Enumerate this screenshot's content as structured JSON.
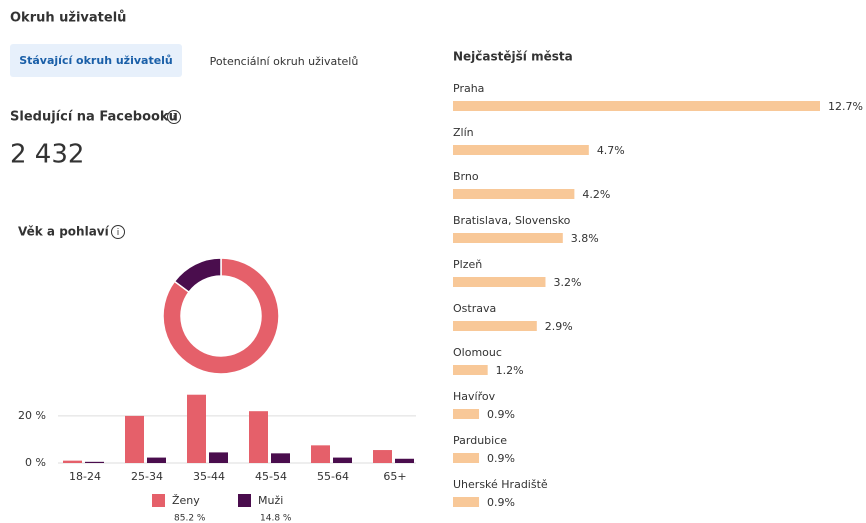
{
  "header": {
    "title": "Okruh uživatelů"
  },
  "tabs": [
    "Stávající okruh uživatelů",
    "Potenciální okruh uživatelů"
  ],
  "followers": {
    "label": "Sledující na Facebooku",
    "value": "2 432"
  },
  "age_gender_title": "Věk a pohlaví",
  "chart_data": [
    {
      "type": "pie",
      "values": [
        85.2,
        14.8
      ],
      "value_labels": [
        "85.2 %",
        "14.8 %"
      ],
      "colors": [
        "#e5606a",
        "#4a0d4d"
      ]
    },
    {
      "type": "bar",
      "categories": [
        "18-24",
        "25-34",
        "35-44",
        "45-54",
        "55-64",
        "65+"
      ],
      "series": [
        {
          "name": "Ženy",
          "color": "#e5606a",
          "values": [
            1,
            20,
            29,
            22,
            7.5,
            5.5
          ]
        },
        {
          "name": "Muži",
          "color": "#4a0d4d",
          "values": [
            0.5,
            2.3,
            4.5,
            4.1,
            2.3,
            1.8
          ]
        }
      ],
      "ylim": [
        0,
        31
      ],
      "yticks": [
        {
          "value": 0,
          "label": "0 %"
        },
        {
          "value": 20,
          "label": "20 %"
        }
      ],
      "grid": true
    },
    {
      "type": "bar",
      "orientation": "horizontal",
      "title": "Nejčastější města",
      "categories": [
        "Praha",
        "Zlín",
        "Brno",
        "Bratislava, Slovensko",
        "Plzeň",
        "Ostrava",
        "Olomouc",
        "Havířov",
        "Pardubice",
        "Uherské Hradiště"
      ],
      "values": [
        12.7,
        4.7,
        4.2,
        3.8,
        3.2,
        2.9,
        1.2,
        0.9,
        0.9,
        0.9
      ],
      "value_labels": [
        "12.7%",
        "4.7%",
        "4.2%",
        "3.8%",
        "3.2%",
        "2.9%",
        "1.2%",
        "0.9%",
        "0.9%",
        "0.9%"
      ],
      "color": "#f8c898",
      "xlim": [
        0,
        12.7
      ]
    }
  ]
}
